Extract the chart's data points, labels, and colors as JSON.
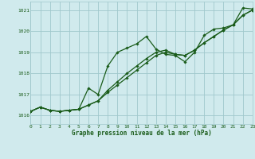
{
  "title": "Graphe pression niveau de la mer (hPa)",
  "bg_color": "#d0eaed",
  "grid_color": "#a0c8cc",
  "line_color": "#1a5c1a",
  "xlim": [
    0,
    23
  ],
  "ylim": [
    1015.6,
    1021.4
  ],
  "yticks": [
    1016,
    1017,
    1018,
    1019,
    1020,
    1021
  ],
  "xticks": [
    0,
    1,
    2,
    3,
    4,
    5,
    6,
    7,
    8,
    9,
    10,
    11,
    12,
    13,
    14,
    15,
    16,
    17,
    18,
    19,
    20,
    21,
    22,
    23
  ],
  "line1": [
    1016.2,
    1016.4,
    1016.25,
    1016.2,
    1016.25,
    1016.3,
    1017.3,
    1017.0,
    1018.35,
    1019.0,
    1019.2,
    1019.4,
    1019.75,
    1019.15,
    1018.9,
    1018.85,
    1018.55,
    1019.0,
    1019.8,
    1020.1,
    1020.15,
    1020.3,
    1021.1,
    1021.05
  ],
  "line2": [
    1016.2,
    1016.4,
    1016.25,
    1016.2,
    1016.25,
    1016.3,
    1016.5,
    1016.7,
    1017.1,
    1017.45,
    1017.8,
    1018.15,
    1018.5,
    1018.85,
    1019.0,
    1018.9,
    1018.85,
    1019.1,
    1019.45,
    1019.75,
    1020.05,
    1020.3,
    1020.75,
    1021.0
  ],
  "line3": [
    1016.2,
    1016.4,
    1016.25,
    1016.2,
    1016.25,
    1016.3,
    1016.5,
    1016.7,
    1017.2,
    1017.6,
    1018.0,
    1018.35,
    1018.7,
    1019.0,
    1019.1,
    1018.9,
    1018.85,
    1019.1,
    1019.45,
    1019.75,
    1020.05,
    1020.3,
    1020.75,
    1021.0
  ]
}
